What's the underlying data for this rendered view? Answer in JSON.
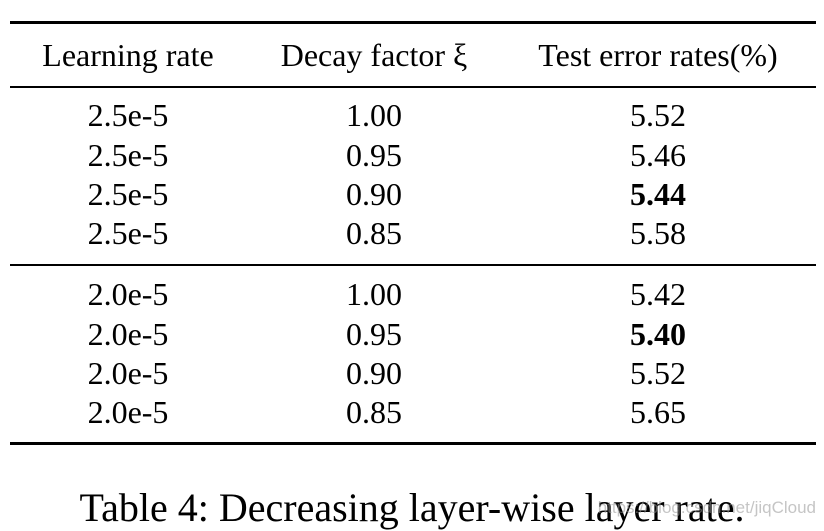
{
  "table": {
    "header": [
      "Learning rate",
      "Decay factor ξ",
      "Test error rates(%)"
    ],
    "rows": [
      [
        "2.5e-5",
        "1.00",
        "5.52"
      ],
      [
        "2.5e-5",
        "0.95",
        "5.46"
      ],
      [
        "2.5e-5",
        "0.90",
        "5.44"
      ],
      [
        "2.5e-5",
        "0.85",
        "5.58"
      ],
      [
        "2.0e-5",
        "1.00",
        "5.42"
      ],
      [
        "2.0e-5",
        "0.95",
        "5.40"
      ],
      [
        "2.0e-5",
        "0.90",
        "5.52"
      ],
      [
        "2.0e-5",
        "0.85",
        "5.65"
      ]
    ],
    "bold": [
      [
        2,
        2
      ],
      [
        5,
        2
      ]
    ]
  },
  "caption": "Table 4: Decreasing layer-wise layer rate.",
  "watermark": "https://blog.csdn.net/jiqCloud"
}
